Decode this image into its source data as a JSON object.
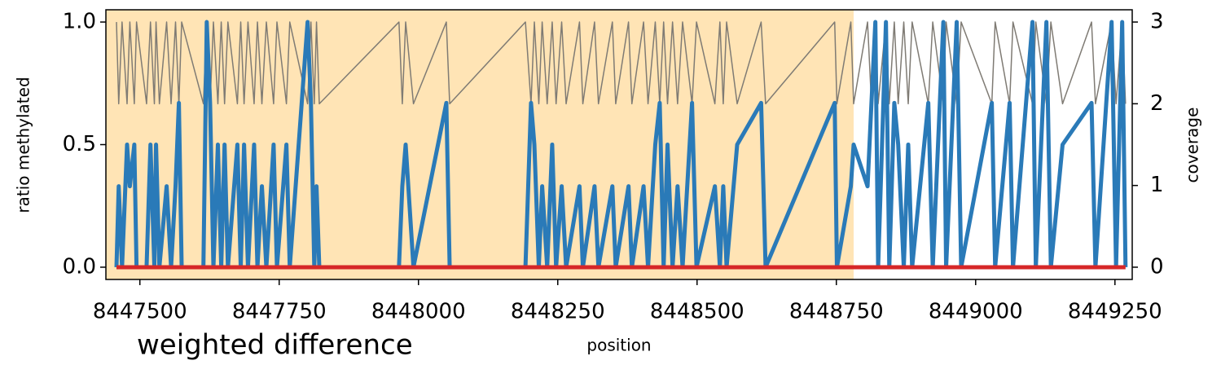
{
  "chart_data": {
    "type": "line",
    "title": "weighted difference",
    "xlabel": "position",
    "ylabel": "ratio methylated",
    "y2label": "coverage",
    "xlim": [
      8447439,
      8449281
    ],
    "ylim": [
      -0.05,
      1.05
    ],
    "y2lim": [
      -0.15,
      3.15
    ],
    "xticks": [
      8447500,
      8447750,
      8448000,
      8448250,
      8448500,
      8448750,
      8449000,
      8449250
    ],
    "yticks": [
      {
        "value": 0,
        "label": "0.0"
      },
      {
        "value": 0.5,
        "label": "0.5"
      },
      {
        "value": 1,
        "label": "1.0"
      }
    ],
    "y2ticks": [
      0,
      1,
      2,
      3
    ],
    "shaded_region": [
      8447439,
      8448781
    ],
    "shaded_color": "#ffe4b5",
    "x": [
      8447458,
      8447462,
      8447468,
      8447477,
      8447482,
      8447490,
      8447494,
      8447512,
      8447519,
      8447526,
      8447529,
      8447535,
      8447548,
      8447556,
      8447564,
      8447570,
      8447575,
      8447614,
      8447620,
      8447626,
      8447632,
      8447640,
      8447646,
      8447652,
      8447658,
      8447675,
      8447681,
      8447687,
      8447694,
      8447705,
      8447711,
      8447719,
      8447727,
      8447740,
      8447746,
      8447763,
      8447769,
      8447801,
      8447807,
      8447813,
      8447817,
      8447822,
      8447965,
      8447971,
      8447977,
      8447991,
      8448050,
      8448056,
      8448192,
      8448202,
      8448208,
      8448216,
      8448222,
      8448231,
      8448240,
      8448247,
      8448257,
      8448265,
      8448289,
      8448295,
      8448316,
      8448323,
      8448348,
      8448354,
      8448377,
      8448383,
      8448404,
      8448412,
      8448425,
      8448433,
      8448440,
      8448447,
      8448456,
      8448465,
      8448474,
      8448491,
      8448499,
      8448532,
      8448541,
      8448547,
      8448553,
      8448572,
      8448615,
      8448623,
      8448747,
      8448751,
      8448776,
      8448781,
      8448806,
      8448813,
      8448820,
      8448825,
      8448839,
      8448845,
      8448854,
      8448861,
      8448871,
      8448879,
      8448886,
      8448915,
      8448923,
      8448942,
      8448947,
      8448966,
      8448974,
      8449029,
      8449035,
      8449061,
      8449067,
      8449102,
      8449108,
      8449127,
      8449135,
      8449156,
      8449208,
      8449215,
      8449244,
      8449252,
      8449263,
      8449269
    ],
    "series": [
      {
        "color": "#7f7b74",
        "axis": "y2",
        "width": 1.5,
        "values": [
          3,
          2,
          3,
          2,
          3,
          2,
          3,
          2,
          3,
          2,
          3,
          2,
          3,
          2,
          3,
          2,
          3,
          2,
          3,
          2,
          3,
          2,
          3,
          2,
          3,
          2,
          3,
          2,
          3,
          2,
          3,
          2,
          3,
          2,
          3,
          2,
          3,
          2,
          3,
          2,
          3,
          2,
          3,
          2,
          3,
          2,
          3,
          2,
          3,
          2,
          3,
          2,
          3,
          2,
          3,
          2,
          3,
          2,
          3,
          2,
          3,
          2,
          3,
          2,
          3,
          2,
          3,
          2,
          3,
          2,
          3,
          2,
          3,
          2,
          3,
          2,
          3,
          2,
          3,
          2,
          3,
          2,
          3,
          2,
          3,
          2,
          3,
          2,
          3,
          2,
          3,
          2,
          3,
          2,
          3,
          2,
          3,
          2,
          3,
          2,
          3,
          2,
          3,
          2,
          3,
          2,
          3,
          2,
          3,
          2,
          3,
          2,
          3,
          2,
          3,
          2,
          3,
          2,
          3,
          2
        ]
      },
      {
        "color": "#2a7ab8",
        "width": 5,
        "values": [
          0,
          0.33,
          0,
          0.5,
          0.33,
          0.5,
          0,
          0,
          0.5,
          0,
          0.5,
          0,
          0.33,
          0,
          0.33,
          0.67,
          0,
          0,
          1.0,
          0.67,
          0,
          0.5,
          0,
          0.5,
          0,
          0.5,
          0,
          0.5,
          0,
          0.5,
          0,
          0.33,
          0,
          0.5,
          0,
          0.5,
          0,
          1.0,
          0.67,
          0,
          0.33,
          0,
          0,
          0.33,
          0.5,
          0,
          0.67,
          0,
          0,
          0.67,
          0.5,
          0,
          0.33,
          0,
          0.5,
          0,
          0.33,
          0,
          0.33,
          0,
          0.33,
          0,
          0.33,
          0,
          0.33,
          0,
          0.33,
          0,
          0.5,
          0.67,
          0,
          0.5,
          0,
          0.33,
          0,
          0.67,
          0,
          0.33,
          0,
          0.33,
          0,
          0.5,
          0.67,
          0,
          0.67,
          0,
          0.33,
          0.5,
          0.33,
          0.67,
          1.0,
          0,
          1.0,
          0,
          0.67,
          0.5,
          0,
          0.5,
          0,
          0.67,
          0,
          1.0,
          0,
          1.0,
          0,
          0.67,
          0,
          0.67,
          0,
          1.0,
          0,
          1.0,
          0,
          0.5,
          0.67,
          0,
          1.0,
          0,
          1.0,
          0
        ]
      },
      {
        "color": "#d62728",
        "width": 5,
        "x": [
          8447458,
          8449269
        ],
        "values": [
          0,
          0
        ]
      }
    ]
  }
}
